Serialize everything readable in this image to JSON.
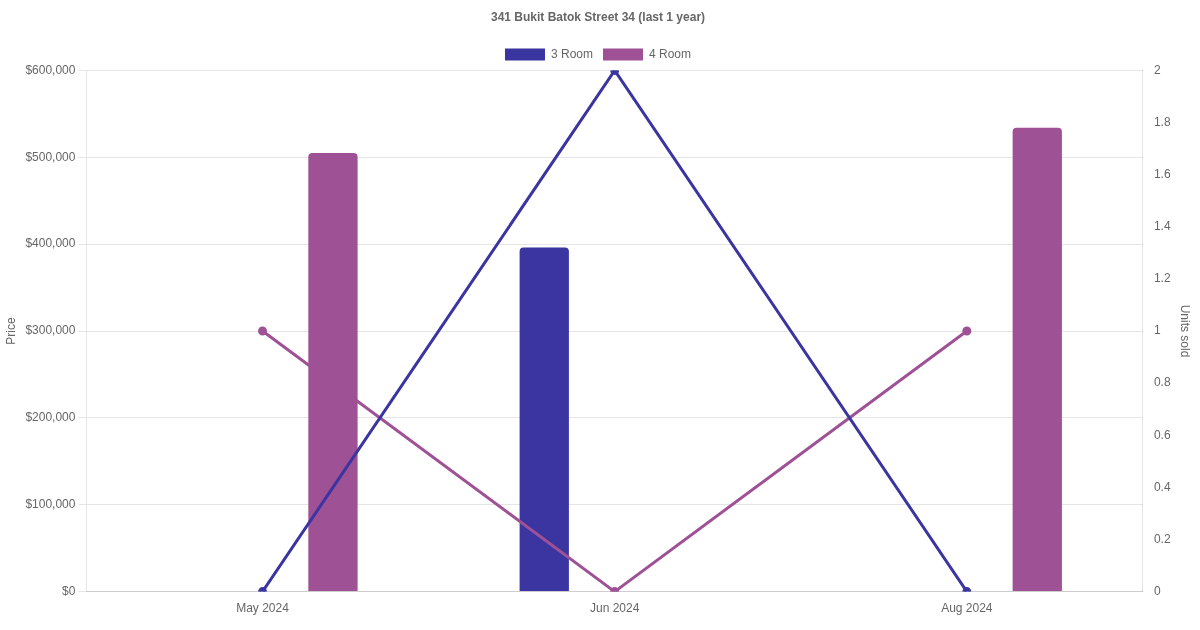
{
  "chart_data": {
    "type": "bar",
    "title": "341 Bukit Batok Street 34 (last 1 year)",
    "ylabel": "Price",
    "y2label": "Units sold",
    "categories": [
      "May 2024",
      "Jun 2024",
      "Aug 2024"
    ],
    "series": [
      {
        "name": "3 Room",
        "color": "#3a35a0",
        "values": [
          null,
          396000,
          null
        ]
      },
      {
        "name": "4 Room",
        "color": "#9f5195",
        "values": [
          505000,
          null,
          534000
        ]
      },
      {
        "type": "line",
        "axis": "y2",
        "color": "#3a35a0",
        "values": [
          0,
          2,
          0
        ]
      },
      {
        "type": "line",
        "axis": "y2",
        "color": "#9f5195",
        "values": [
          1,
          0,
          1
        ]
      }
    ],
    "ylim": [
      0,
      600000
    ],
    "yticks": [
      {
        "value": 0,
        "label": "$0"
      },
      {
        "value": 100000,
        "label": "$100,000"
      },
      {
        "value": 200000,
        "label": "$200,000"
      },
      {
        "value": 300000,
        "label": "$300,000"
      },
      {
        "value": 400000,
        "label": "$400,000"
      },
      {
        "value": 500000,
        "label": "$500,000"
      },
      {
        "value": 600000,
        "label": "$600,000"
      }
    ],
    "y2lim": [
      0,
      2
    ],
    "y2ticks": [
      0,
      0.2,
      0.4,
      0.6,
      0.8,
      1,
      1.2,
      1.4,
      1.6,
      1.8,
      2
    ],
    "grid": "y",
    "legend": "top",
    "marker": "circle"
  }
}
